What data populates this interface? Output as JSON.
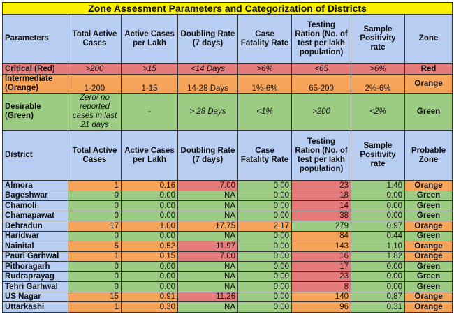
{
  "title": "Zone Assesment Parameters and Categorization of Districts",
  "param_headers": [
    "Parameters",
    "Total Active Cases",
    "Active Cases per Lakh",
    "Doubling Rate (7 days)",
    "Case Fatality Rate",
    "Testing Ration (No. of test per lakh population)",
    "Sample Positivity rate",
    "Zone"
  ],
  "criteria": [
    {
      "cells": [
        "Critical (Red)",
        ">200",
        ">15",
        "<14 Days",
        ">6%",
        "<65",
        ">6%",
        "Red"
      ],
      "color": "R"
    },
    {
      "cells": [
        "Intermediate (Orange)",
        "1-200",
        "1-15",
        "14-28 Days",
        "1%-6%",
        "65-200",
        "2%-6%",
        "Orange"
      ],
      "color": "O"
    },
    {
      "cells": [
        "Desirable (Green)",
        "Zero/ no reported cases in last 21 days",
        "-",
        "> 28 Days",
        "<1%",
        ">200",
        "<2%",
        "Green"
      ],
      "color": "G"
    }
  ],
  "district_headers": [
    "District",
    "Total Active Cases",
    "Active Cases per Lakh",
    "Doubling Rate (7 days)",
    "Case Fatality Rate",
    "Testing Ration (No. of test per lakh population)",
    "Sample Positivity rate",
    "Probable Zone"
  ],
  "districts": [
    {
      "cells": [
        "Almora",
        "1",
        "0.16",
        "7.00",
        "0.00",
        "23",
        "1.40",
        "Orange"
      ],
      "colors": "BOORGRGO"
    },
    {
      "cells": [
        "Bageshwar",
        "0",
        "0.00",
        "NA",
        "0.00",
        "18",
        "0.00",
        "Green"
      ],
      "colors": "BGGGGRGG"
    },
    {
      "cells": [
        "Chamoli",
        "0",
        "0.00",
        "NA",
        "0.00",
        "14",
        "0.00",
        "Green"
      ],
      "colors": "BGGGGRGG"
    },
    {
      "cells": [
        "Chamapawat",
        "0",
        "0.00",
        "NA",
        "0.00",
        "38",
        "0.00",
        "Green"
      ],
      "colors": "BGGGGRGG"
    },
    {
      "cells": [
        "Dehradun",
        "17",
        "1.00",
        "17.75",
        "2.17",
        "279",
        "0.97",
        "Orange"
      ],
      "colors": "BOOOOGGO"
    },
    {
      "cells": [
        "Haridwar",
        "0",
        "0.00",
        "NA",
        "0.00",
        "84",
        "0.44",
        "Green"
      ],
      "colors": "BGGGGOGG"
    },
    {
      "cells": [
        "Nainital",
        "5",
        "0.52",
        "11.97",
        "0.00",
        "143",
        "1.10",
        "Orange"
      ],
      "colors": "BOORGOGO"
    },
    {
      "cells": [
        "Pauri Garhwal",
        "1",
        "0.15",
        "7.00",
        "0.00",
        "16",
        "1.82",
        "Orange"
      ],
      "colors": "BOORGRGO"
    },
    {
      "cells": [
        "Pithoragarh",
        "0",
        "0.00",
        "NA",
        "0.00",
        "17",
        "0.00",
        "Green"
      ],
      "colors": "BGGGGRGG"
    },
    {
      "cells": [
        "Rudraprayag",
        "0",
        "0.00",
        "NA",
        "0.00",
        "23",
        "0.00",
        "Green"
      ],
      "colors": "BGGGGRGG"
    },
    {
      "cells": [
        "Tehri Garhwal",
        "0",
        "0.00",
        "NA",
        "0.00",
        "8",
        "0.00",
        "Green"
      ],
      "colors": "BGGGGRGG"
    },
    {
      "cells": [
        "US Nagar",
        "15",
        "0.91",
        "11.26",
        "0.00",
        "140",
        "0.87",
        "Orange"
      ],
      "colors": "BOORGOGO"
    },
    {
      "cells": [
        "Uttarkashi",
        "1",
        "0.30",
        "NA",
        "0.00",
        "96",
        "0.31",
        "Orange"
      ],
      "colors": "BOOGGOGO"
    }
  ]
}
